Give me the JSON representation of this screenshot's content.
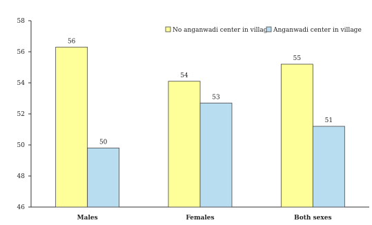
{
  "chart_data": {
    "type": "bar",
    "title": "",
    "xlabel": "",
    "ylabel": "",
    "categories": [
      "Males",
      "Females",
      "Both sexes"
    ],
    "series": [
      {
        "name": "No anganwadi center in village",
        "values": [
          56.3,
          54.1,
          55.2
        ],
        "labels": [
          "56",
          "54",
          "55"
        ],
        "color": "#ffff99"
      },
      {
        "name": "Anganwadi center in village",
        "values": [
          49.8,
          52.7,
          51.2
        ],
        "labels": [
          "50",
          "53",
          "51"
        ],
        "color": "#b8dcf0"
      }
    ],
    "ylim": [
      46,
      58
    ],
    "yticks": [
      "46",
      "48",
      "50",
      "52",
      "54",
      "56",
      "58"
    ],
    "grid": false,
    "legend_position": "top-right"
  }
}
